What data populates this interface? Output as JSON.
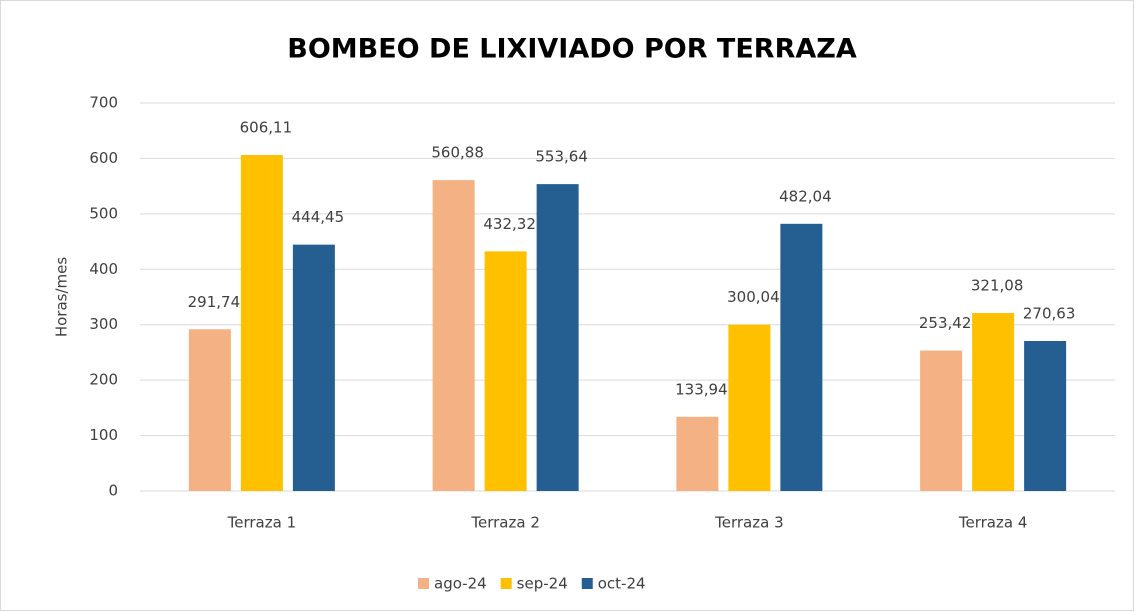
{
  "chart_data": {
    "type": "bar",
    "title": "BOMBEO DE LIXIVIADO POR TERRAZA",
    "ylabel": "Horas/mes",
    "categories": [
      "Terraza 1",
      "Terraza 2",
      "Terraza 3",
      "Terraza 4"
    ],
    "series": [
      {
        "name": "ago-24",
        "color": "#f4b183",
        "values": [
          291.74,
          560.88,
          133.94,
          253.42
        ],
        "value_labels": [
          "291,74",
          "560,88",
          "133,94",
          "253,42"
        ]
      },
      {
        "name": "sep-24",
        "color": "#ffc000",
        "values": [
          606.11,
          432.32,
          300.04,
          321.08
        ],
        "value_labels": [
          "606,11",
          "432,32",
          "300,04",
          "321,08"
        ]
      },
      {
        "name": "oct-24",
        "color": "#255e91",
        "values": [
          444.45,
          553.64,
          482.04,
          270.63
        ],
        "value_labels": [
          "444,45",
          "553,64",
          "482,04",
          "270,63"
        ]
      }
    ],
    "ylim": [
      0,
      700
    ],
    "yticks": [
      0,
      100,
      200,
      300,
      400,
      500,
      600,
      700
    ],
    "grid": true,
    "legend": "bottom"
  }
}
